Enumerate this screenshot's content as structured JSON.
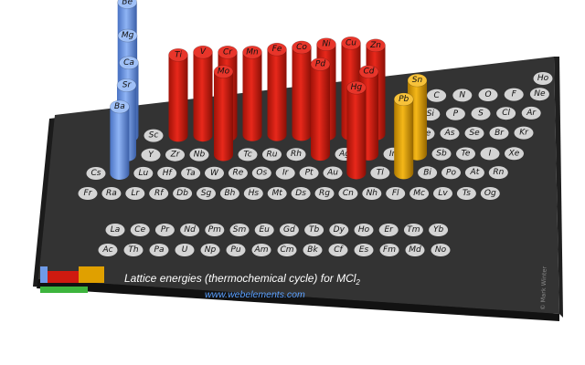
{
  "chart_data": {
    "type": "bar",
    "title": "Lattice energies (thermochemical cycle) for MCl",
    "title_subscript": "2",
    "source_url": "www.webelements.com",
    "copyright": "© Mark Winter",
    "colors": {
      "s_block": "#6f9be8",
      "d_block": "#cf1a10",
      "p_block": "#e0a000",
      "f_block": "#3db53d",
      "empty_cell": "#d4d4d4",
      "board": "#2f2f2f"
    },
    "table": {
      "main": [
        [
          "",
          "",
          "",
          "",
          "",
          "",
          "",
          "",
          "",
          "",
          "",
          "",
          "",
          "",
          "",
          "",
          "",
          "Ho"
        ],
        [
          "",
          "Be",
          "",
          "",
          "",
          "",
          "",
          "",
          "",
          "",
          "",
          "",
          "",
          "C",
          "N",
          "O",
          "F",
          "Ne"
        ],
        [
          "",
          "Mg",
          "",
          "",
          "",
          "",
          "",
          "",
          "",
          "",
          "",
          "",
          "",
          "Si",
          "P",
          "S",
          "Cl",
          "Ar"
        ],
        [
          "",
          "Ca",
          "Sc",
          "Ti",
          "V",
          "Cr",
          "Mn",
          "Fe",
          "Co",
          "Ni",
          "Cu",
          "Zn",
          "",
          "Ge",
          "As",
          "Se",
          "Br",
          "Kr"
        ],
        [
          "",
          "Sr",
          "Y",
          "Zr",
          "Nb",
          "Mo",
          "Tc",
          "Ru",
          "Rh",
          "Pd",
          "Ag",
          "Cd",
          "In",
          "Sn",
          "Sb",
          "Te",
          "I",
          "Xe"
        ],
        [
          "Cs",
          "Ba",
          "Lu",
          "Hf",
          "Ta",
          "W",
          "Re",
          "Os",
          "Ir",
          "Pt",
          "Au",
          "Hg",
          "Tl",
          "Pb",
          "Bi",
          "Po",
          "At",
          "Rn"
        ],
        [
          "Fr",
          "Ra",
          "Lr",
          "Rf",
          "Db",
          "Sg",
          "Bh",
          "Hs",
          "Mt",
          "Ds",
          "Rg",
          "Cn",
          "Nh",
          "Fl",
          "Mc",
          "Lv",
          "Ts",
          "Og"
        ]
      ],
      "lanthanides": [
        "La",
        "Ce",
        "Pr",
        "Nd",
        "Pm",
        "Sm",
        "Eu",
        "Gd",
        "Tb",
        "Dy",
        "Ho",
        "Er",
        "Tm",
        "Yb"
      ],
      "actinides": [
        "Ac",
        "Th",
        "Pa",
        "U",
        "Np",
        "Pu",
        "Am",
        "Cm",
        "Bk",
        "Cf",
        "Es",
        "Fm",
        "Md",
        "No"
      ]
    },
    "values": [
      {
        "element": "Be",
        "block": "s",
        "value": 3020
      },
      {
        "element": "Mg",
        "block": "s",
        "value": 2526
      },
      {
        "element": "Ca",
        "block": "s",
        "value": 2255
      },
      {
        "element": "Sr",
        "block": "s",
        "value": 2153
      },
      {
        "element": "Ba",
        "block": "s",
        "value": 2056
      },
      {
        "element": "Ti",
        "block": "d",
        "value": 2484
      },
      {
        "element": "V",
        "block": "d",
        "value": 2565
      },
      {
        "element": "Cr",
        "block": "d",
        "value": 2556
      },
      {
        "element": "Mn",
        "block": "d",
        "value": 2550
      },
      {
        "element": "Fe",
        "block": "d",
        "value": 2633
      },
      {
        "element": "Co",
        "block": "d",
        "value": 2691
      },
      {
        "element": "Ni",
        "block": "d",
        "value": 2775
      },
      {
        "element": "Cu",
        "block": "d",
        "value": 2811
      },
      {
        "element": "Zn",
        "block": "d",
        "value": 2734
      },
      {
        "element": "Mo",
        "block": "d",
        "value": 2563
      },
      {
        "element": "Pd",
        "block": "d",
        "value": 2781
      },
      {
        "element": "Cd",
        "block": "d",
        "value": 2544
      },
      {
        "element": "Hg",
        "block": "d",
        "value": 2629
      },
      {
        "element": "Sn",
        "block": "p",
        "value": 2272
      },
      {
        "element": "Pb",
        "block": "p",
        "value": 2269
      }
    ]
  }
}
